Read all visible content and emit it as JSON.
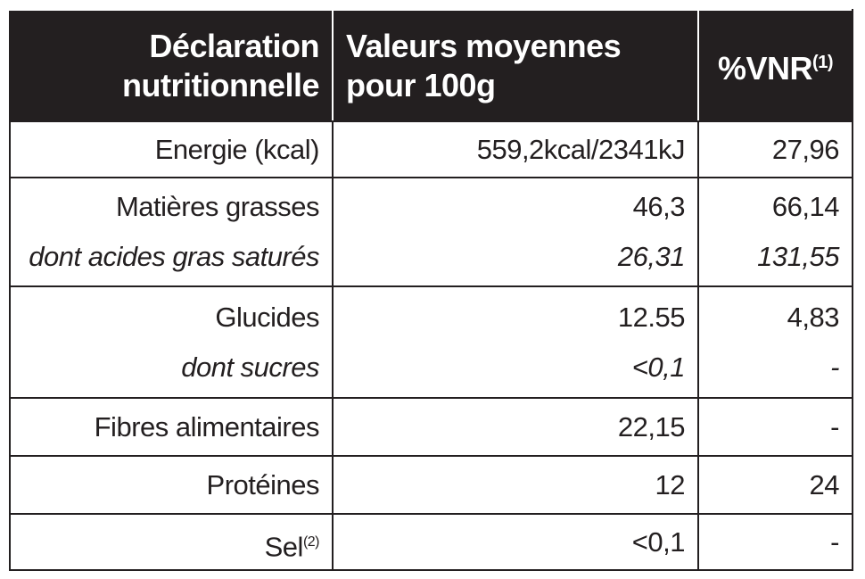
{
  "header": {
    "col1": [
      "Déclaration",
      "nutritionnelle"
    ],
    "col2": [
      "Valeurs moyennes",
      "pour 100g"
    ],
    "col3": {
      "text": "%VNR",
      "note": "(1)"
    }
  },
  "rows": [
    {
      "main": {
        "label": "Energie (kcal)",
        "value": "559,2kcal/2341kJ",
        "vnr": "27,96"
      }
    },
    {
      "main": {
        "label": "Matières grasses",
        "value": "46,3",
        "vnr": "66,14"
      },
      "sub": {
        "label": "dont acides gras saturés",
        "value": "26,31",
        "vnr": "131,55"
      }
    },
    {
      "main": {
        "label": "Glucides",
        "value": "12.55",
        "vnr": "4,83"
      },
      "sub": {
        "label": "dont sucres",
        "value": "<0,1",
        "vnr": "-"
      }
    },
    {
      "main": {
        "label": "Fibres alimentaires",
        "value": "22,15",
        "vnr": "-"
      }
    },
    {
      "main": {
        "label": "Protéines",
        "value": "12",
        "vnr": "24"
      }
    },
    {
      "main": {
        "label": "Sel",
        "note": "(2)",
        "value": "<0,1",
        "vnr": "-"
      }
    }
  ]
}
